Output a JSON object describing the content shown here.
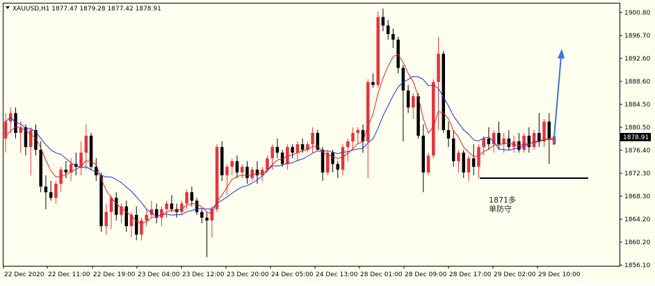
{
  "header": {
    "symbol_line": "XAUUSD,H1  1877.47 1879.28 1877.42 1878.91",
    "menu_icon": "triangle-down-icon"
  },
  "colors": {
    "background": "#fffff0",
    "frame": "#000000",
    "bull_candle": "#e8323a",
    "bear_candle": "#000000",
    "ma_fast": "#e02020",
    "ma_slow": "#1f2fd0",
    "arrow": "#3a6fe8",
    "support_line": "#000000",
    "price_tag_bg": "#000000",
    "price_tag_text": "#ffffff"
  },
  "annotation": {
    "text_line1": "1871多",
    "text_line2": "单防守"
  },
  "current_price": "1878.91",
  "chart_data": {
    "type": "candlestick",
    "symbol": "XAUUSD",
    "timeframe": "H1",
    "last_bar": {
      "open": 1877.47,
      "high": 1879.28,
      "low": 1877.42,
      "close": 1878.91
    },
    "y_ticks": [
      "1900.80",
      "1896.70",
      "1892.60",
      "1888.60",
      "1884.50",
      "1880.50",
      "1876.40",
      "1872.30",
      "1868.30",
      "1864.20",
      "1860.20",
      "1856.10"
    ],
    "ylim": [
      1856.1,
      1902.0
    ],
    "x_ticks": [
      "22 Dec 2020",
      "22 Dec 11:00",
      "22 Dec 19:00",
      "23 Dec 04:00",
      "23 Dec 12:00",
      "23 Dec 20:00",
      "24 Dec 05:00",
      "24 Dec 13:00",
      "28 Dec 01:00",
      "28 Dec 09:00",
      "28 Dec 17:00",
      "29 Dec 02:00",
      "29 Dec 10:00"
    ],
    "support_level": 1871.5,
    "candles": [
      [
        1878.5,
        1883.0,
        1876.0,
        1881.5
      ],
      [
        1881.5,
        1884.0,
        1879.5,
        1883.0
      ],
      [
        1883.0,
        1884.0,
        1878.5,
        1879.5
      ],
      [
        1879.5,
        1881.5,
        1876.0,
        1880.5
      ],
      [
        1880.5,
        1881.0,
        1875.5,
        1877.0
      ],
      [
        1877.0,
        1880.5,
        1872.0,
        1880.0
      ],
      [
        1880.0,
        1881.0,
        1875.5,
        1876.5
      ],
      [
        1876.5,
        1878.0,
        1869.0,
        1870.0
      ],
      [
        1870.0,
        1872.0,
        1866.0,
        1869.0
      ],
      [
        1869.0,
        1871.0,
        1867.5,
        1868.0
      ],
      [
        1868.0,
        1871.0,
        1867.0,
        1870.5
      ],
      [
        1870.5,
        1873.5,
        1869.0,
        1873.0
      ],
      [
        1873.0,
        1874.5,
        1871.5,
        1872.5
      ],
      [
        1872.5,
        1875.0,
        1871.0,
        1874.0
      ],
      [
        1874.0,
        1876.0,
        1872.0,
        1873.5
      ],
      [
        1873.5,
        1878.0,
        1872.0,
        1876.0
      ],
      [
        1876.0,
        1881.0,
        1873.0,
        1879.0
      ],
      [
        1879.0,
        1879.5,
        1873.0,
        1873.5
      ],
      [
        1873.5,
        1875.0,
        1871.0,
        1872.0
      ],
      [
        1872.0,
        1872.5,
        1862.0,
        1863.0
      ],
      [
        1863.0,
        1867.0,
        1861.5,
        1865.5
      ],
      [
        1865.5,
        1868.5,
        1862.5,
        1868.0
      ],
      [
        1868.0,
        1869.0,
        1864.0,
        1865.0
      ],
      [
        1865.0,
        1867.0,
        1863.5,
        1866.5
      ],
      [
        1866.5,
        1867.5,
        1862.0,
        1863.0
      ],
      [
        1863.0,
        1865.5,
        1861.0,
        1865.0
      ],
      [
        1865.0,
        1866.5,
        1860.5,
        1861.5
      ],
      [
        1861.5,
        1864.5,
        1860.5,
        1864.0
      ],
      [
        1864.0,
        1866.0,
        1863.0,
        1865.0
      ],
      [
        1865.0,
        1867.5,
        1864.5,
        1866.0
      ],
      [
        1866.0,
        1867.0,
        1863.5,
        1864.5
      ],
      [
        1864.5,
        1866.5,
        1863.0,
        1866.0
      ],
      [
        1866.0,
        1867.5,
        1864.5,
        1867.0
      ],
      [
        1867.0,
        1868.5,
        1865.5,
        1866.0
      ],
      [
        1866.0,
        1867.0,
        1864.5,
        1865.5
      ],
      [
        1865.5,
        1867.5,
        1865.0,
        1867.0
      ],
      [
        1867.0,
        1869.5,
        1866.0,
        1869.0
      ],
      [
        1869.0,
        1870.0,
        1866.5,
        1867.5
      ],
      [
        1867.5,
        1868.0,
        1865.0,
        1865.5
      ],
      [
        1865.5,
        1866.0,
        1863.5,
        1864.5
      ],
      [
        1864.5,
        1865.5,
        1857.5,
        1864.0
      ],
      [
        1864.0,
        1866.5,
        1861.0,
        1866.0
      ],
      [
        1866.0,
        1877.5,
        1865.5,
        1877.0
      ],
      [
        1877.0,
        1878.0,
        1871.0,
        1872.0
      ],
      [
        1872.0,
        1874.0,
        1868.5,
        1873.5
      ],
      [
        1873.5,
        1875.0,
        1872.0,
        1874.5
      ],
      [
        1874.5,
        1875.5,
        1871.5,
        1872.5
      ],
      [
        1872.5,
        1874.0,
        1871.5,
        1873.5
      ],
      [
        1873.5,
        1874.5,
        1870.5,
        1871.5
      ],
      [
        1871.5,
        1873.5,
        1871.0,
        1873.0
      ],
      [
        1873.0,
        1874.5,
        1870.5,
        1872.0
      ],
      [
        1872.0,
        1873.5,
        1871.0,
        1873.0
      ],
      [
        1873.0,
        1875.5,
        1872.5,
        1875.0
      ],
      [
        1875.0,
        1877.5,
        1873.0,
        1877.0
      ],
      [
        1877.0,
        1878.5,
        1875.0,
        1876.0
      ],
      [
        1876.0,
        1876.5,
        1873.5,
        1874.0
      ],
      [
        1874.0,
        1877.5,
        1873.0,
        1877.0
      ],
      [
        1877.0,
        1877.5,
        1875.0,
        1876.0
      ],
      [
        1876.0,
        1878.0,
        1874.5,
        1877.5
      ],
      [
        1877.5,
        1878.5,
        1876.0,
        1876.5
      ],
      [
        1876.5,
        1878.0,
        1876.0,
        1877.5
      ],
      [
        1877.5,
        1880.5,
        1876.0,
        1879.5
      ],
      [
        1879.5,
        1880.0,
        1876.5,
        1876.5
      ],
      [
        1876.5,
        1877.0,
        1871.0,
        1872.5
      ],
      [
        1872.5,
        1876.5,
        1872.0,
        1876.0
      ],
      [
        1876.0,
        1876.5,
        1872.5,
        1874.0
      ],
      [
        1874.0,
        1874.5,
        1871.5,
        1873.0
      ],
      [
        1873.0,
        1877.5,
        1872.0,
        1877.0
      ],
      [
        1877.0,
        1878.5,
        1874.5,
        1878.0
      ],
      [
        1878.0,
        1880.5,
        1876.5,
        1879.5
      ],
      [
        1879.5,
        1880.5,
        1877.5,
        1880.0
      ],
      [
        1880.0,
        1881.0,
        1876.0,
        1878.0
      ],
      [
        1878.0,
        1889.0,
        1871.5,
        1888.5
      ],
      [
        1888.5,
        1890.0,
        1887.5,
        1888.0
      ],
      [
        1888.0,
        1901.0,
        1887.5,
        1900.0
      ],
      [
        1900.0,
        1901.5,
        1897.5,
        1898.5
      ],
      [
        1898.5,
        1899.5,
        1896.0,
        1897.0
      ],
      [
        1897.0,
        1898.0,
        1894.5,
        1896.0
      ],
      [
        1896.0,
        1896.5,
        1890.0,
        1891.0
      ],
      [
        1891.0,
        1891.5,
        1878.0,
        1887.0
      ],
      [
        1887.0,
        1888.0,
        1883.0,
        1884.0
      ],
      [
        1884.0,
        1886.5,
        1882.0,
        1886.0
      ],
      [
        1886.0,
        1886.5,
        1878.5,
        1879.0
      ],
      [
        1879.0,
        1881.0,
        1869.0,
        1872.5
      ],
      [
        1872.5,
        1876.0,
        1872.0,
        1875.5
      ],
      [
        1875.5,
        1889.0,
        1875.0,
        1888.5
      ],
      [
        1888.5,
        1896.5,
        1880.0,
        1893.5
      ],
      [
        1893.5,
        1894.0,
        1879.5,
        1880.0
      ],
      [
        1880.0,
        1881.5,
        1877.0,
        1878.5
      ],
      [
        1878.5,
        1880.0,
        1873.5,
        1874.5
      ],
      [
        1874.5,
        1876.5,
        1872.5,
        1876.0
      ],
      [
        1876.0,
        1876.5,
        1871.5,
        1872.5
      ],
      [
        1872.5,
        1875.5,
        1871.0,
        1875.0
      ],
      [
        1875.0,
        1877.5,
        1872.0,
        1873.5
      ],
      [
        1873.5,
        1877.5,
        1871.5,
        1877.0
      ],
      [
        1877.0,
        1879.0,
        1875.5,
        1878.5
      ],
      [
        1878.5,
        1880.5,
        1876.5,
        1877.5
      ],
      [
        1877.5,
        1880.0,
        1876.0,
        1879.5
      ],
      [
        1879.5,
        1881.5,
        1876.5,
        1877.5
      ],
      [
        1877.5,
        1879.5,
        1876.0,
        1878.5
      ],
      [
        1878.5,
        1880.0,
        1876.5,
        1877.0
      ],
      [
        1877.0,
        1879.0,
        1876.0,
        1878.0
      ],
      [
        1878.0,
        1879.5,
        1876.0,
        1876.5
      ],
      [
        1876.5,
        1879.5,
        1876.0,
        1879.0
      ],
      [
        1879.0,
        1880.5,
        1876.0,
        1877.0
      ],
      [
        1877.0,
        1880.0,
        1876.5,
        1879.5
      ],
      [
        1879.5,
        1883.0,
        1877.0,
        1878.0
      ],
      [
        1878.0,
        1882.0,
        1877.0,
        1881.5
      ],
      [
        1881.5,
        1883.0,
        1874.0,
        1878.5
      ],
      [
        1877.47,
        1879.28,
        1877.42,
        1878.91
      ]
    ],
    "ma_fast": [
      1879.0,
      1879.8,
      1880.6,
      1880.4,
      1879.9,
      1879.2,
      1878.6,
      1876.8,
      1874.7,
      1872.8,
      1871.7,
      1871.8,
      1872.1,
      1872.6,
      1873.1,
      1873.5,
      1874.6,
      1874.4,
      1873.9,
      1871.4,
      1869.3,
      1868.0,
      1867.0,
      1866.2,
      1865.5,
      1864.9,
      1863.8,
      1863.5,
      1863.8,
      1864.5,
      1864.7,
      1865.0,
      1865.5,
      1865.8,
      1865.8,
      1866.0,
      1866.7,
      1867.0,
      1866.9,
      1866.4,
      1865.5,
      1865.2,
      1867.4,
      1868.5,
      1869.9,
      1871.3,
      1871.8,
      1872.0,
      1871.9,
      1872.1,
      1872.3,
      1872.4,
      1872.9,
      1873.9,
      1874.7,
      1874.9,
      1875.4,
      1875.6,
      1876.0,
      1876.3,
      1876.6,
      1877.1,
      1877.2,
      1876.1,
      1875.6,
      1875.4,
      1875.0,
      1875.2,
      1875.9,
      1876.7,
      1877.6,
      1878.0,
      1880.7,
      1882.8,
      1886.5,
      1889.2,
      1891.3,
      1893.0,
      1893.4,
      1892.0,
      1890.0,
      1888.6,
      1885.9,
      1882.0,
      1879.5,
      1880.6,
      1883.3,
      1883.0,
      1882.0,
      1879.9,
      1878.7,
      1877.0,
      1876.1,
      1875.3,
      1875.5,
      1876.2,
      1876.6,
      1877.3,
      1877.4,
      1877.6,
      1877.6,
      1877.5,
      1877.2,
      1877.6,
      1877.5,
      1877.9,
      1877.9,
      1878.3,
      1878.5,
      1878.6
    ]
  }
}
